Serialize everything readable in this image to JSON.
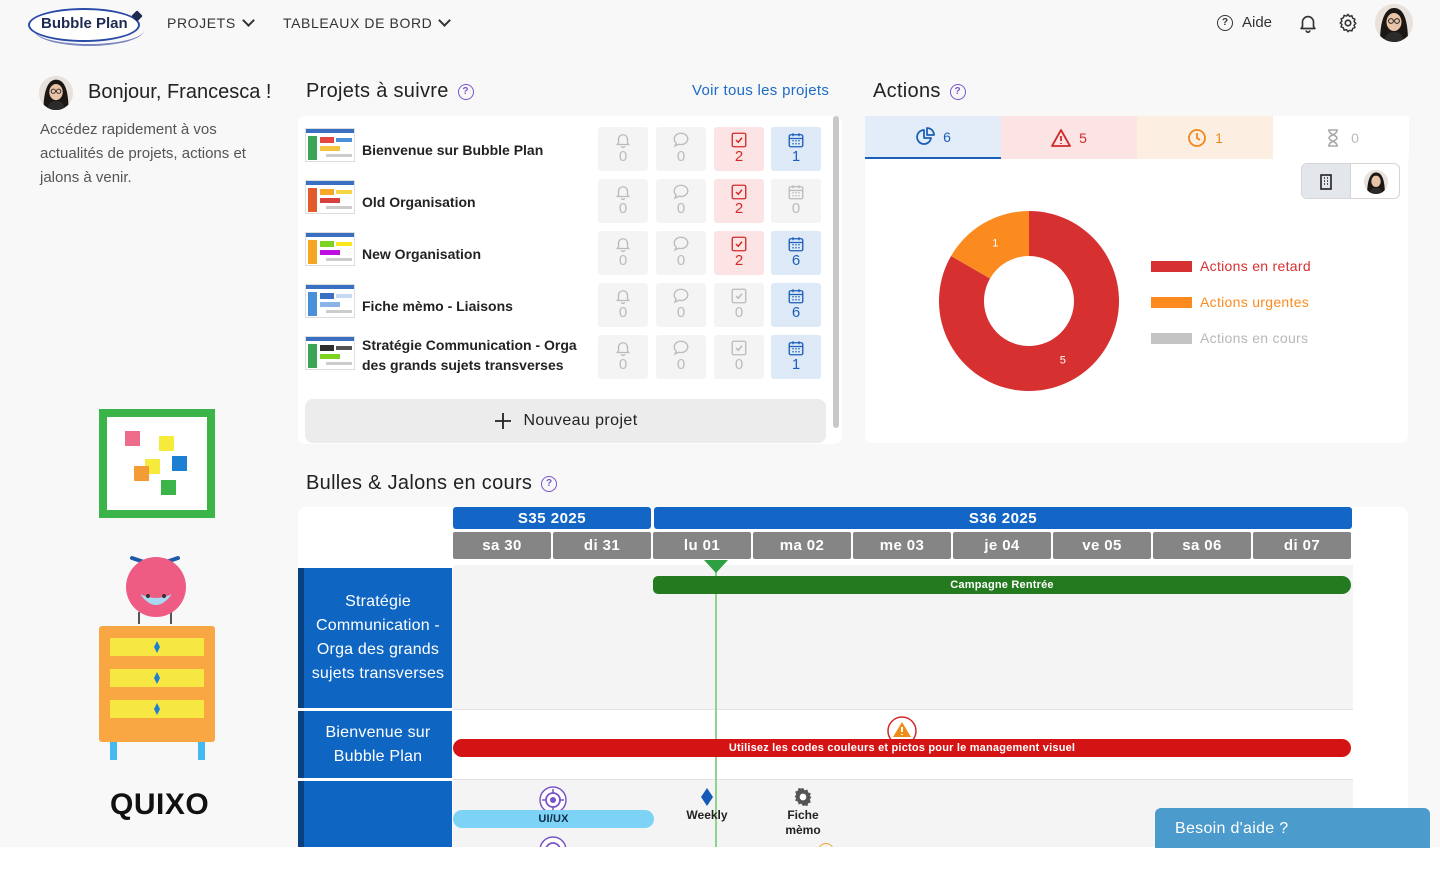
{
  "header": {
    "logo_text": "Bubble Plan",
    "nav": [
      {
        "label": "PROJETS"
      },
      {
        "label": "TABLEAUX DE BORD"
      }
    ],
    "help_label": "Aide"
  },
  "welcome": {
    "greeting": "Bonjour, Francesca !",
    "intro": "Accédez rapidement à vos actualités de projets, actions et jalons à venir.",
    "brand": "QUIXO"
  },
  "projects": {
    "title": "Projets à suivre",
    "see_all": "Voir tous les projets",
    "new_project": "Nouveau projet",
    "rows": [
      {
        "name": "Bienvenue sur Bubble Plan",
        "alerts": "0",
        "comments": "0",
        "actions": "2",
        "milestones": "1"
      },
      {
        "name": "Old Organisation",
        "alerts": "0",
        "comments": "0",
        "actions": "2",
        "milestones": "0"
      },
      {
        "name": "New Organisation",
        "alerts": "0",
        "comments": "0",
        "actions": "2",
        "milestones": "6"
      },
      {
        "name": "Fiche mèmo - Liaisons",
        "alerts": "0",
        "comments": "0",
        "actions": "0",
        "milestones": "6"
      },
      {
        "name": "Stratégie Communication - Orga des grands sujets transverses",
        "alerts": "0",
        "comments": "0",
        "actions": "0",
        "milestones": "1"
      }
    ]
  },
  "actions": {
    "title": "Actions",
    "tabs": [
      {
        "icon": "pie-chart-icon",
        "count": "6"
      },
      {
        "icon": "warning-icon",
        "count": "5"
      },
      {
        "icon": "clock-icon",
        "count": "1"
      },
      {
        "icon": "hourglass-icon",
        "count": "0"
      }
    ],
    "legend": [
      {
        "label": "Actions en retard",
        "color": "#d63031"
      },
      {
        "label": "Actions urgentes",
        "color": "#fb8b1e"
      },
      {
        "label": "Actions en cours",
        "color": "#c4c4c4"
      }
    ],
    "chart_data": {
      "type": "pie",
      "categories": [
        "Actions en retard",
        "Actions urgentes",
        "Actions en cours"
      ],
      "values": [
        5,
        1,
        0
      ],
      "data_labels": [
        "5",
        "1",
        ""
      ]
    }
  },
  "timeline": {
    "title": "Bulles & Jalons en cours",
    "weeks": [
      {
        "label": "S35 2025"
      },
      {
        "label": "S36 2025"
      }
    ],
    "days": [
      "sa 30",
      "di 31",
      "lu 01",
      "ma 02",
      "me 03",
      "je 04",
      "ve 05",
      "sa 06",
      "di 07"
    ],
    "rows": [
      {
        "label": "Stratégie Communication - Orga des grands sujets transverses"
      },
      {
        "label": "Bienvenue sur Bubble Plan"
      },
      {
        "label": ""
      }
    ],
    "bars": [
      {
        "label": "Campagne Rentrée",
        "color": "#237a1f"
      },
      {
        "label": "Utilisez les codes couleurs et pictos pour le management visuel",
        "color": "#d41414"
      },
      {
        "label": "UI/UX",
        "color": "#7dd3f5"
      }
    ],
    "milestones": [
      {
        "label": "Weekly"
      },
      {
        "label": "Fiche mèmo"
      }
    ]
  },
  "help_widget": {
    "label": "Besoin d'aide ?"
  }
}
